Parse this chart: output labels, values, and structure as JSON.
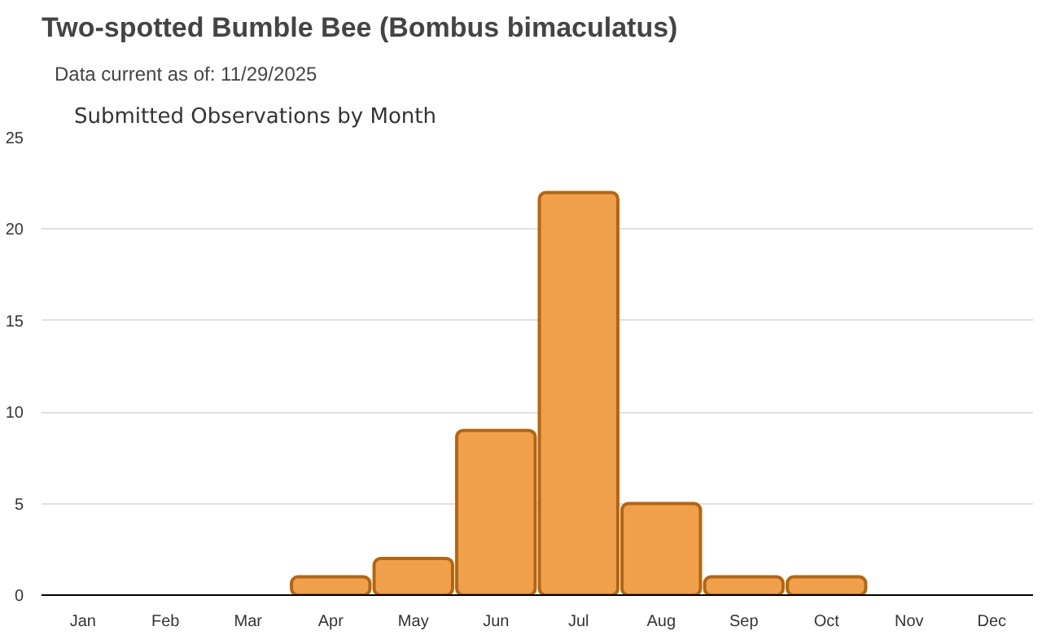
{
  "chart_data": {
    "type": "bar",
    "title": "Two-spotted Bumble Bee   (Bombus bimaculatus)",
    "subtitle": "Data current as of: 11/29/2025",
    "annotations": [
      "Submitted Observations by Month"
    ],
    "categories": [
      "Jan",
      "Feb",
      "Mar",
      "Apr",
      "May",
      "Jun",
      "Jul",
      "Aug",
      "Sep",
      "Oct",
      "Nov",
      "Dec"
    ],
    "values": [
      0,
      0,
      0,
      1,
      2,
      9,
      22,
      5,
      1,
      1,
      0,
      0
    ],
    "color": "#f0a04b",
    "ylim": [
      0,
      25
    ],
    "yticks": [
      0,
      5,
      10,
      15,
      20,
      25
    ],
    "grid": "y"
  }
}
